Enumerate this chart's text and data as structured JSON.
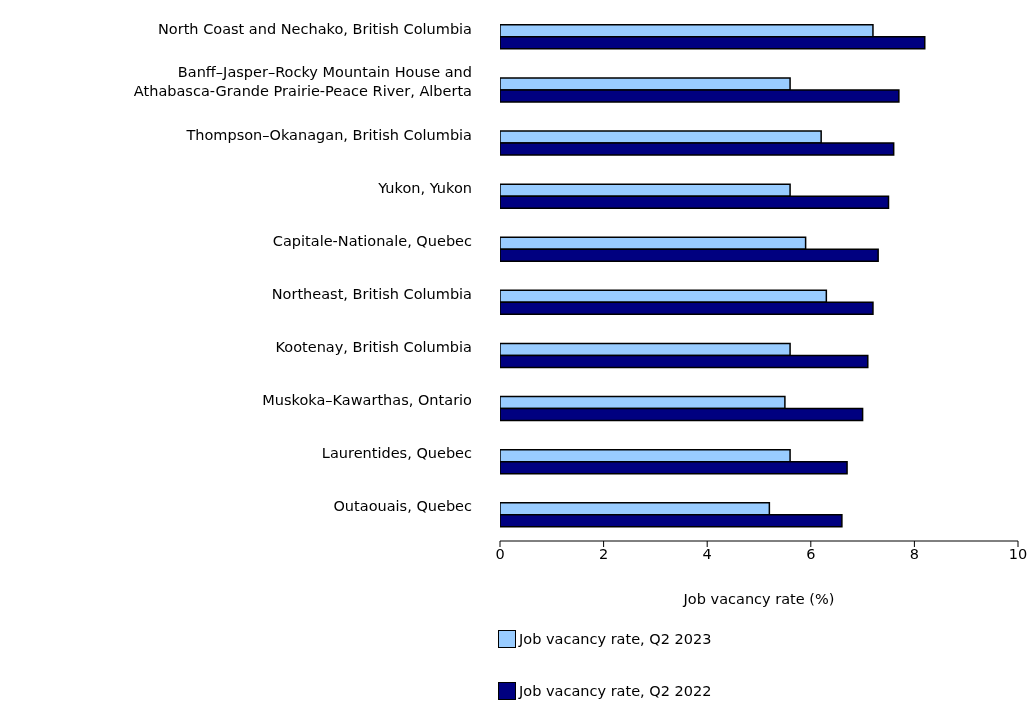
{
  "chart_data": {
    "type": "bar",
    "orientation": "horizontal",
    "xlabel": "Job vacancy rate (%)",
    "categories": [
      "North Coast and Nechako, British Columbia",
      "Banff–Jasper–Rocky Mountain House and Athabasca-Grande Prairie-Peace River, Alberta",
      "Thompson–Okanagan, British Columbia",
      "Yukon, Yukon",
      "Capitale-Nationale, Quebec",
      "Northeast, British Columbia",
      "Kootenay, British Columbia",
      "Muskoka–Kawarthas, Ontario",
      "Laurentides, Quebec",
      "Outaouais, Quebec"
    ],
    "series": [
      {
        "name": "Job vacancy rate, Q2 2023",
        "color": "#99ccff",
        "values": [
          7.2,
          5.6,
          6.2,
          5.6,
          5.9,
          6.3,
          5.6,
          5.5,
          5.6,
          5.2
        ]
      },
      {
        "name": "Job vacancy rate, Q2 2022",
        "color": "#000080",
        "values": [
          8.2,
          7.7,
          7.6,
          7.5,
          7.3,
          7.2,
          7.1,
          7.0,
          6.7,
          6.6
        ]
      }
    ],
    "xlim": [
      0,
      10
    ],
    "xticks": [
      0,
      2,
      4,
      6,
      8,
      10
    ],
    "grid": false,
    "legend": "bottom"
  }
}
